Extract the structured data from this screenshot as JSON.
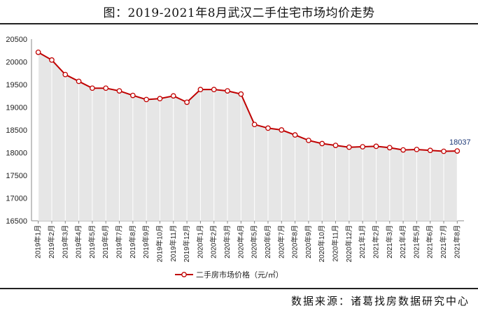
{
  "title": "图：2019-2021年8月武汉二手住宅市场均价走势",
  "source": "数据来源：诸葛找房数据研究中心",
  "chart_data": {
    "type": "area",
    "title": "",
    "xlabel": "",
    "ylabel": "",
    "ylim": [
      16500,
      20500
    ],
    "yticks": [
      16500,
      17000,
      17500,
      18000,
      18500,
      19000,
      19500,
      20000,
      20500
    ],
    "grid": false,
    "legend_placement": "bottom",
    "line_color": "#c00000",
    "fill_color": "#e6e6e6",
    "categories": [
      "2019年1月",
      "2019年2月",
      "2019年3月",
      "2019年4月",
      "2019年5月",
      "2019年6月",
      "2019年7月",
      "2019年8月",
      "2019年9月",
      "2019年10月",
      "2019年11月",
      "2019年12月",
      "2020年1月",
      "2020年2月",
      "2020年3月",
      "2020年4月",
      "2020年5月",
      "2020年6月",
      "2020年7月",
      "2020年8月",
      "2020年9月",
      "2020年10月",
      "2020年11月",
      "2020年12月",
      "2021年1月",
      "2021年2月",
      "2021年3月",
      "2021年4月",
      "2021年5月",
      "2021年6月",
      "2021年7月",
      "2021年8月"
    ],
    "series": [
      {
        "name": "二手房市场价格（元/㎡）",
        "values": [
          20210,
          20040,
          19720,
          19570,
          19420,
          19420,
          19360,
          19260,
          19170,
          19190,
          19250,
          19110,
          19390,
          19390,
          19360,
          19290,
          18620,
          18540,
          18500,
          18390,
          18270,
          18200,
          18160,
          18120,
          18130,
          18140,
          18110,
          18060,
          18070,
          18050,
          18030,
          18037
        ]
      }
    ],
    "data_labels": [
      {
        "index": 31,
        "text": "18037"
      }
    ]
  }
}
